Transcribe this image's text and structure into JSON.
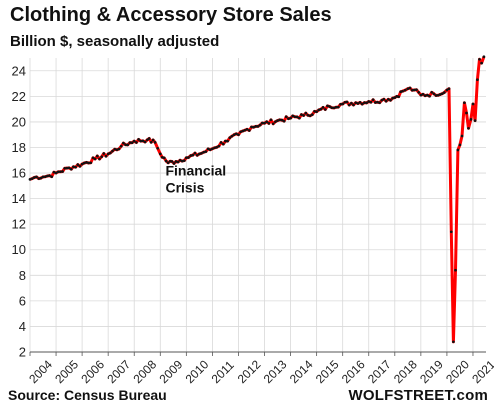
{
  "header": {
    "title": "Clothing & Accessory Store Sales",
    "subtitle": "Billion $, seasonally adjusted"
  },
  "footer": {
    "source": "Source: Census Bureau",
    "brand": "WOLFSTREET.com"
  },
  "colors": {
    "line": "#ff0000",
    "markers": "#111111",
    "grid": "#d9d9d9",
    "axis": "#555555"
  },
  "chart_data": {
    "type": "line",
    "title": "Clothing & Accessory Store Sales",
    "subtitle": "Billion $, seasonally adjusted",
    "xlabel": "",
    "ylabel": "",
    "ylim": [
      2,
      25
    ],
    "xlim": [
      2004,
      2021.5
    ],
    "yticks": [
      2,
      4,
      6,
      8,
      10,
      12,
      14,
      16,
      18,
      20,
      22,
      24
    ],
    "xticks": [
      "2004",
      "2005",
      "2006",
      "2007",
      "2008",
      "2009",
      "2010",
      "2011",
      "2012",
      "2013",
      "2014",
      "2015",
      "2016",
      "2017",
      "2018",
      "2019",
      "2020",
      "2021"
    ],
    "grid": true,
    "markers": true,
    "annotations": [
      {
        "lines": [
          "Financial",
          "Crisis"
        ],
        "x": 2009.2,
        "y": 15.8
      }
    ],
    "anchors": [
      [
        2004.0,
        15.5
      ],
      [
        2004.25,
        15.7
      ],
      [
        2004.5,
        15.7
      ],
      [
        2004.75,
        15.8
      ],
      [
        2005.0,
        16.0
      ],
      [
        2005.5,
        16.4
      ],
      [
        2006.0,
        16.7
      ],
      [
        2006.5,
        17.1
      ],
      [
        2007.0,
        17.5
      ],
      [
        2007.5,
        18.1
      ],
      [
        2008.0,
        18.5
      ],
      [
        2008.5,
        18.6
      ],
      [
        2008.8,
        18.4
      ],
      [
        2009.0,
        17.5
      ],
      [
        2009.3,
        16.8
      ],
      [
        2009.6,
        16.9
      ],
      [
        2010.0,
        17.2
      ],
      [
        2010.5,
        17.5
      ],
      [
        2011.0,
        17.9
      ],
      [
        2011.5,
        18.5
      ],
      [
        2012.0,
        19.0
      ],
      [
        2012.5,
        19.6
      ],
      [
        2013.0,
        19.9
      ],
      [
        2013.5,
        20.1
      ],
      [
        2014.0,
        20.3
      ],
      [
        2014.5,
        20.5
      ],
      [
        2015.0,
        20.8
      ],
      [
        2015.5,
        21.2
      ],
      [
        2016.0,
        21.4
      ],
      [
        2016.5,
        21.5
      ],
      [
        2017.0,
        21.6
      ],
      [
        2017.5,
        21.7
      ],
      [
        2018.0,
        21.9
      ],
      [
        2018.3,
        22.4
      ],
      [
        2018.5,
        22.6
      ],
      [
        2018.75,
        22.5
      ],
      [
        2019.0,
        22.1
      ],
      [
        2019.5,
        22.2
      ],
      [
        2019.9,
        22.3
      ],
      [
        2020.0,
        22.5
      ],
      [
        2020.08,
        22.6
      ],
      [
        2020.17,
        11.4
      ],
      [
        2020.25,
        2.8
      ],
      [
        2020.33,
        8.4
      ],
      [
        2020.42,
        17.8
      ],
      [
        2020.5,
        18.2
      ],
      [
        2020.58,
        18.9
      ],
      [
        2020.67,
        21.5
      ],
      [
        2020.75,
        20.7
      ],
      [
        2020.83,
        19.5
      ],
      [
        2020.92,
        20.2
      ],
      [
        2021.0,
        21.4
      ],
      [
        2021.08,
        20.1
      ],
      [
        2021.17,
        23.3
      ],
      [
        2021.25,
        24.9
      ],
      [
        2021.33,
        24.6
      ],
      [
        2021.42,
        25.1
      ]
    ],
    "noise_amplitude": 0.18
  }
}
